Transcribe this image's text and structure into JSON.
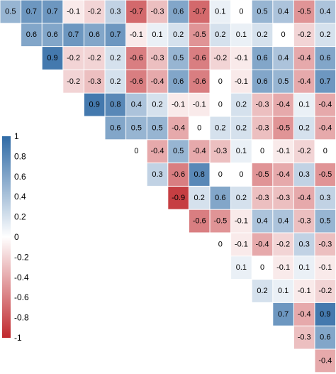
{
  "chart_data": {
    "type": "heatmap",
    "layout": "upper-triangle-correlation-matrix",
    "color_scale": {
      "low": "#c0282d",
      "mid": "#ffffff",
      "high": "#2f6aa5",
      "min": -1,
      "max": 1
    },
    "legend": {
      "placement": "left",
      "ticks": [
        "1",
        "0.8",
        "0.6",
        "0.4",
        "0.2",
        "0",
        "-0.2",
        "-0.4",
        "-0.6",
        "-0.8",
        "-1"
      ]
    },
    "rows": [
      [
        0.5,
        0.7,
        0.7,
        -0.1,
        -0.2,
        0.3,
        -0.7,
        -0.3,
        0.6,
        -0.7,
        0.1,
        0,
        0.5,
        0.4,
        -0.5,
        0.4
      ],
      [
        0.6,
        0.6,
        0.7,
        0.6,
        0.7,
        -0.1,
        0.1,
        0.2,
        -0.5,
        0.2,
        0.1,
        0.2,
        0,
        -0.2,
        0.2
      ],
      [
        0.9,
        -0.2,
        -0.2,
        0.2,
        -0.6,
        -0.3,
        0.5,
        -0.6,
        -0.2,
        -0.1,
        0.6,
        0.4,
        -0.4,
        0.6
      ],
      [
        -0.2,
        -0.3,
        0.2,
        -0.6,
        -0.4,
        0.6,
        -0.6,
        0,
        -0.1,
        0.6,
        0.5,
        -0.4,
        0.7
      ],
      [
        0.9,
        0.8,
        0.4,
        0.2,
        -0.1,
        -0.1,
        0,
        0.2,
        -0.3,
        -0.4,
        0.1,
        -0.4
      ],
      [
        0.6,
        0.5,
        0.5,
        -0.4,
        0,
        0.2,
        0.2,
        -0.3,
        -0.5,
        0.2,
        -0.4
      ],
      [
        0,
        -0.4,
        0.5,
        -0.4,
        -0.3,
        0.1,
        0,
        -0.1,
        -0.2,
        0
      ],
      [
        0.3,
        -0.6,
        0.8,
        0,
        0,
        -0.5,
        -0.4,
        0.3,
        -0.5
      ],
      [
        -0.9,
        0.2,
        0.6,
        0.2,
        -0.3,
        -0.3,
        -0.4,
        0.3
      ],
      [
        -0.6,
        -0.5,
        -0.1,
        0.4,
        0.4,
        -0.3,
        0.5
      ],
      [
        0,
        -0.1,
        -0.4,
        -0.2,
        0.3,
        -0.3
      ],
      [
        0.1,
        0,
        -0.1,
        0.1,
        -0.1
      ],
      [
        0.2,
        0.1,
        -0.1,
        -0.2
      ],
      [
        0.7,
        -0.4,
        0.9
      ],
      [
        -0.3,
        0.6
      ],
      [
        -0.4
      ]
    ]
  }
}
